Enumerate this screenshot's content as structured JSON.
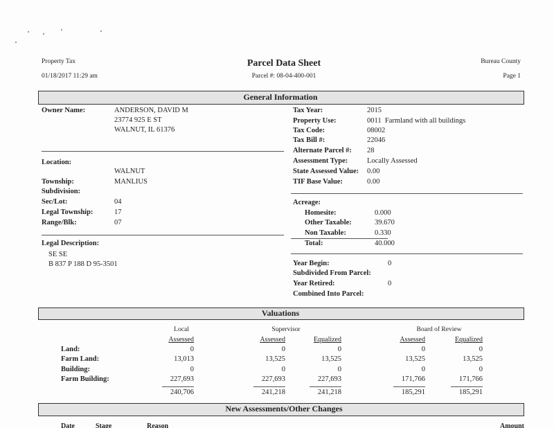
{
  "header": {
    "left_top": "Property Tax",
    "left_bottom": "01/18/2017 11:29 am",
    "title": "Parcel Data Sheet",
    "parcel": "Parcel #: 08-04-400-001",
    "right_top": "Bureau County",
    "right_bottom": "Page 1"
  },
  "general": {
    "title": "General Information",
    "left": [
      {
        "label": "Owner Name:",
        "lines": [
          "ANDERSON, DAVID M",
          "23774 925 E ST",
          "WALNUT, IL 61376"
        ]
      },
      {
        "label": "Location:",
        "value": "WALNUT"
      },
      {
        "label": "Township:",
        "value": "MANLIUS"
      },
      {
        "label": "Subdivision:"
      },
      {
        "label": "Sec/Lot:",
        "value": "04"
      },
      {
        "label": "Legal Township:",
        "value": "17"
      },
      {
        "label": "Range/Blk:",
        "value": "07"
      },
      {
        "label": "Legal Description:",
        "lines": [
          "SE SE",
          "B 837 P 188 D 95-3501"
        ]
      }
    ],
    "right": [
      {
        "label": "Tax Year:",
        "value": "2015"
      },
      {
        "label": "Property Use:",
        "value": "0011  Farmland with all buildings"
      },
      {
        "label": "Tax Code:",
        "value": "08002"
      },
      {
        "label": "Tax Bill #:",
        "value": "22046"
      },
      {
        "label": "Alternate Parcel #:",
        "value": "28"
      },
      {
        "label": "Assessment Type:",
        "value": "Locally Assessed"
      },
      {
        "label": "State Assessed Value:",
        "value": "0.00"
      },
      {
        "label": "TIF Base Value:",
        "value": "0.00"
      },
      {
        "label": "Acreage:"
      },
      {
        "label": "Homesite:",
        "value": "0.000"
      },
      {
        "label": "Other Taxable:",
        "value": "39.670"
      },
      {
        "label": "Non Taxable:",
        "value": "0.330"
      },
      {
        "label": "Total:",
        "value": "40.000"
      },
      {
        "label": "Year Begin:",
        "value": "0"
      },
      {
        "label": "Subdivided From Parcel:"
      },
      {
        "label": "Year Retired:",
        "value": "0"
      },
      {
        "label": "Combined Into Parcel:"
      }
    ]
  },
  "valuations": {
    "title": "Valuations",
    "groups": [
      "Local",
      "Supervisor",
      "Board of Review"
    ],
    "columns": [
      "Assessed",
      "Assessed",
      "Equalized",
      "Assessed",
      "Equalized"
    ],
    "rows": [
      {
        "label": "Land:",
        "values": [
          "0",
          "0",
          "0",
          "0",
          "0"
        ]
      },
      {
        "label": "Farm Land:",
        "values": [
          "13,013",
          "13,525",
          "13,525",
          "13,525",
          "13,525"
        ]
      },
      {
        "label": "Building:",
        "values": [
          "0",
          "0",
          "0",
          "0",
          "0"
        ]
      },
      {
        "label": "Farm Building:",
        "values": [
          "227,693",
          "227,693",
          "227,693",
          "171,766",
          "171,766"
        ]
      }
    ],
    "totals": [
      "240,706",
      "241,218",
      "241,218",
      "185,291",
      "185,291"
    ]
  },
  "changes": {
    "title": "New Assessments/Other Changes",
    "columns": [
      "Date",
      "Stage",
      "Reason",
      "Amount"
    ]
  }
}
